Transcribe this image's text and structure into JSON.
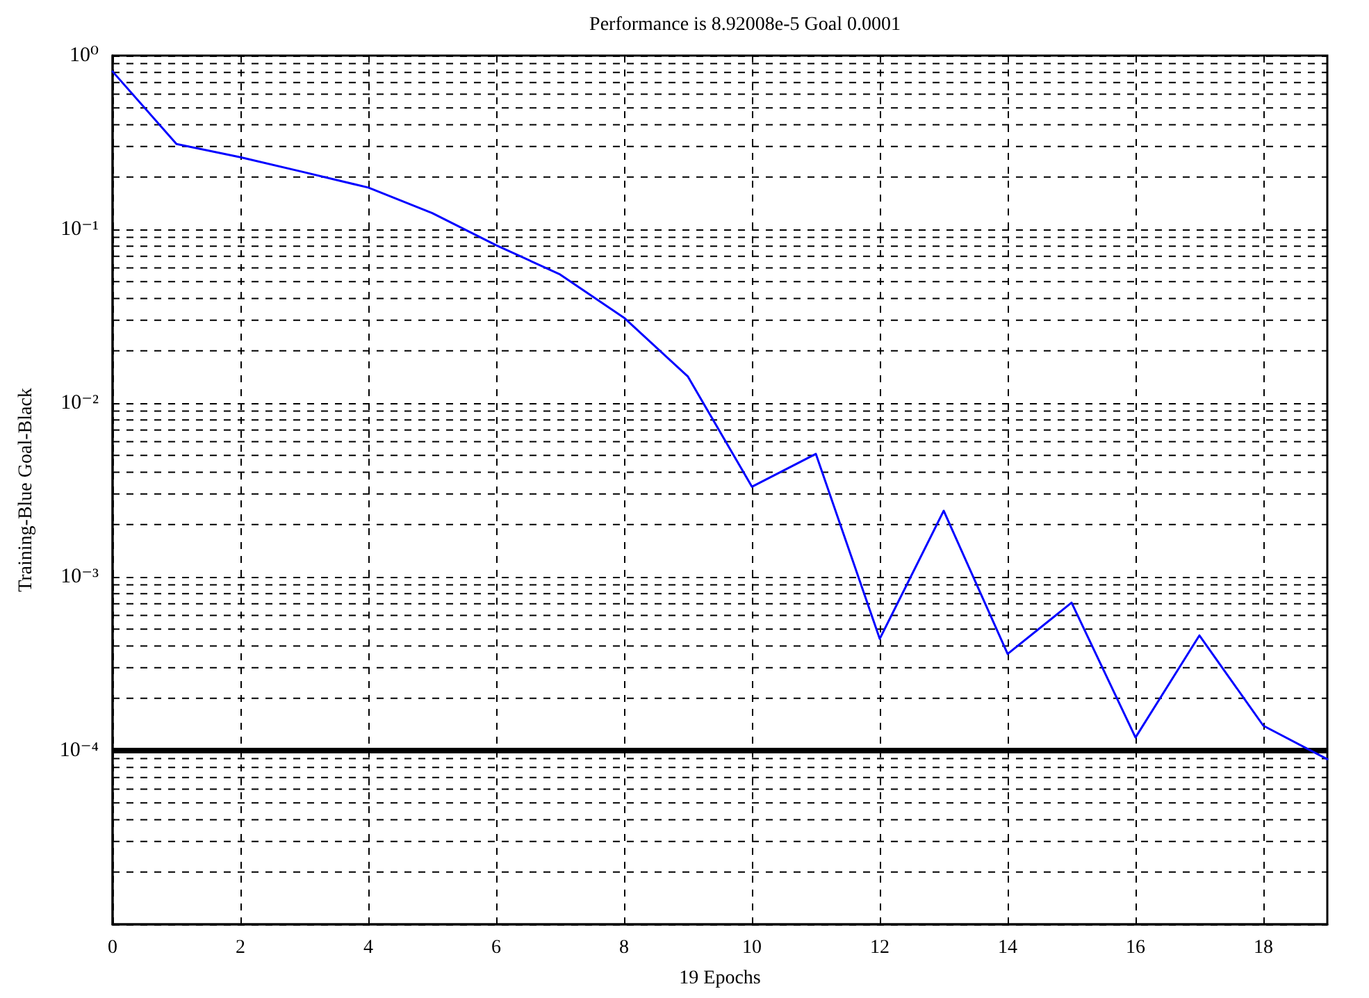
{
  "chart_data": {
    "type": "line",
    "title": "Performance is 8.92008e-5 Goal 0.0001",
    "xlabel": "19 Epochs",
    "ylabel": "Training-Blue Goal-Black",
    "x": [
      0,
      1,
      2,
      3,
      4,
      5,
      6,
      7,
      8,
      9,
      10,
      11,
      12,
      13,
      14,
      15,
      16,
      17,
      18,
      19
    ],
    "series": [
      {
        "color": "#0000ff",
        "values": [
          0.81,
          0.31,
          0.26,
          0.213,
          0.174,
          0.124,
          0.081,
          0.055,
          0.031,
          0.0142,
          0.0033,
          0.0051,
          0.00044,
          0.0024,
          0.00036,
          0.00071,
          0.000119,
          0.00046,
          0.000139,
          8.92e-05
        ]
      }
    ],
    "xlim": [
      0,
      19
    ],
    "xticks": [
      0,
      2,
      4,
      6,
      8,
      10,
      12,
      14,
      16,
      18
    ],
    "ylim": [
      1e-05,
      1
    ],
    "yticks": [
      {
        "value": 1e-05,
        "label": null
      },
      {
        "value": 0.0001,
        "label": "10⁻⁴"
      },
      {
        "value": 0.001,
        "label": "10⁻³"
      },
      {
        "value": 0.01,
        "label": "10⁻²"
      },
      {
        "value": 0.1,
        "label": "10⁻¹"
      },
      {
        "value": 1,
        "label": "10⁰"
      }
    ],
    "log": "y",
    "grid": true,
    "marker": "none",
    "line_style": "solid",
    "ref_lines": [
      {
        "axis": "y",
        "value": 0.0001,
        "color": "#000000",
        "line_style": "solid"
      }
    ]
  }
}
